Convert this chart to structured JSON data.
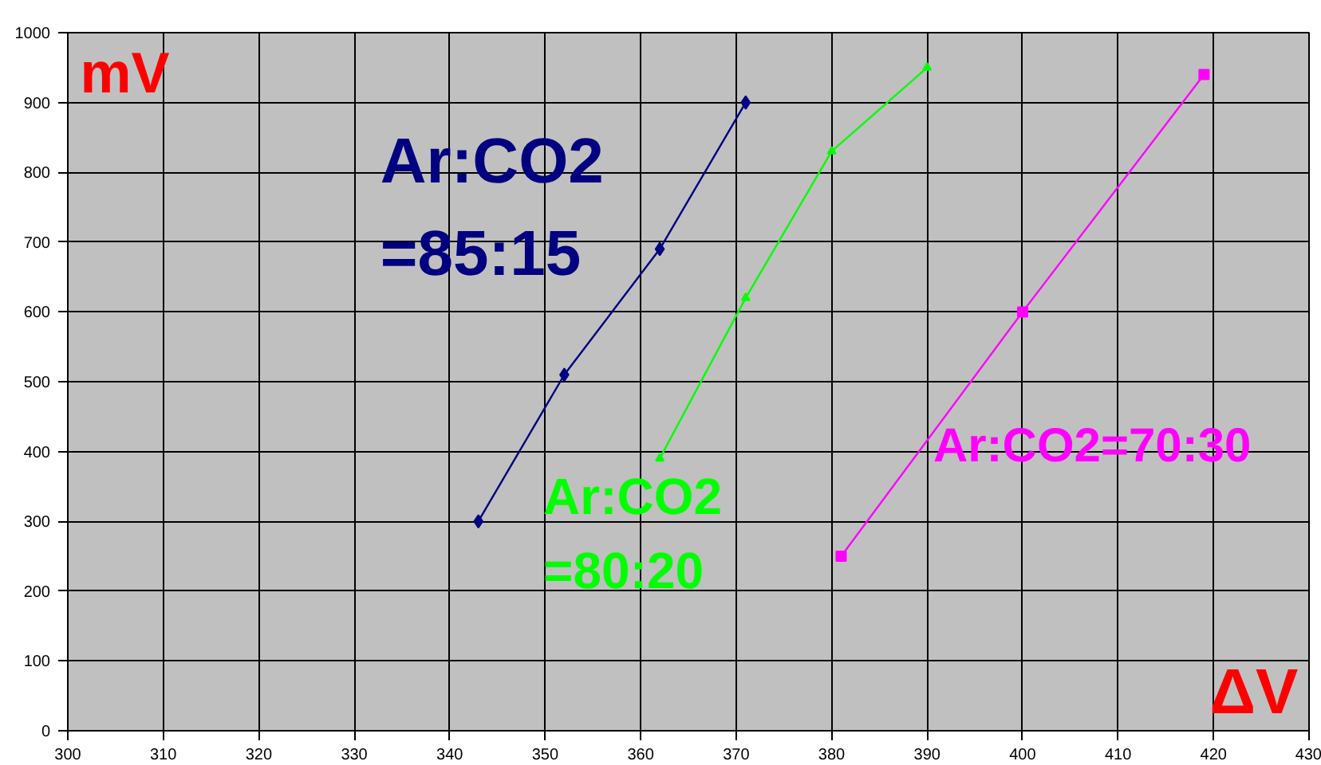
{
  "chart_data": {
    "type": "line",
    "xlabel": "ΔV",
    "ylabel": "mV",
    "xlim": [
      300,
      430
    ],
    "xticks": [
      300,
      310,
      320,
      330,
      340,
      350,
      360,
      370,
      380,
      390,
      400,
      410,
      420,
      430
    ],
    "ylim": [
      0,
      1000
    ],
    "yticks": [
      0,
      100,
      200,
      300,
      400,
      500,
      600,
      700,
      800,
      900,
      1000
    ],
    "grid": true,
    "series": [
      {
        "name": "Ar:CO2\n=85:15",
        "color": "#000080",
        "marker": "diamond",
        "x": [
          343,
          352,
          362,
          371
        ],
        "values": [
          300,
          510,
          690,
          900
        ]
      },
      {
        "name": "Ar:CO2\n=80:20",
        "color": "#00ff00",
        "marker": "triangle",
        "x": [
          362,
          371,
          380,
          390
        ],
        "values": [
          390,
          620,
          830,
          950
        ]
      },
      {
        "name": "Ar:CO2=70:30",
        "color": "#ff00ff",
        "marker": "square",
        "x": [
          381,
          400,
          419
        ],
        "values": [
          250,
          600,
          940
        ]
      }
    ]
  }
}
